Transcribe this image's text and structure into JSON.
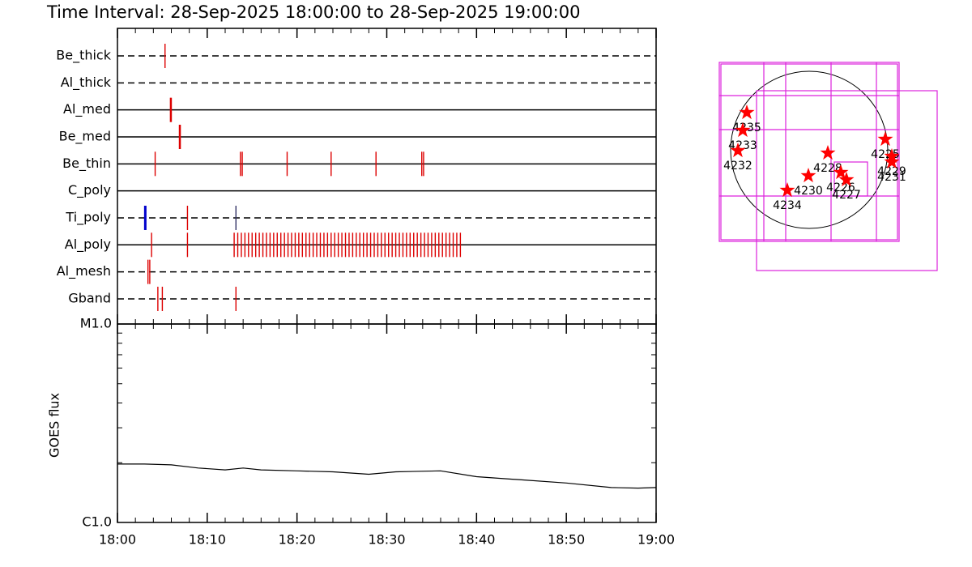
{
  "title": "Time Interval: 28-Sep-2025 18:00:00 to 28-Sep-2025 19:00:00",
  "chart_data": [
    {
      "type": "timeline",
      "color": "#dd0000",
      "rows": [
        {
          "name": "Be_thick",
          "style": "dashed",
          "times": [
            5.3
          ]
        },
        {
          "name": "Al_thick",
          "style": "dashed",
          "times": []
        },
        {
          "name": "Al_med",
          "style": "solid",
          "times": [
            5.9,
            6.0
          ]
        },
        {
          "name": "Be_med",
          "style": "solid",
          "times": [
            6.9,
            7.0
          ]
        },
        {
          "name": "Be_thin",
          "style": "solid",
          "times": [
            4.2,
            13.7,
            13.9,
            18.9,
            23.8,
            28.8,
            33.9,
            34.1
          ]
        },
        {
          "name": "C_poly",
          "style": "solid",
          "times": []
        },
        {
          "name": "Ti_poly",
          "style": "dashed",
          "times": [
            3.1,
            7.8,
            13.2
          ],
          "colors": [
            "#0000cc",
            "#dd0000",
            "#333366"
          ]
        },
        {
          "name": "Al_poly",
          "style": "solid",
          "times": [
            3.8,
            7.8,
            13.0,
            13.4,
            13.8,
            14.2,
            14.6,
            15.0,
            15.4,
            15.8,
            16.2,
            16.6,
            17.0,
            17.4,
            17.8,
            18.2,
            18.6,
            19.0,
            19.4,
            19.8,
            20.2,
            20.6,
            21.0,
            21.4,
            21.8,
            22.2,
            22.6,
            23.0,
            23.4,
            23.8,
            24.2,
            24.6,
            25.0,
            25.4,
            25.8,
            26.2,
            26.6,
            27.0,
            27.4,
            27.8,
            28.2,
            28.6,
            29.0,
            29.4,
            29.8,
            30.2,
            30.6,
            31.0,
            31.4,
            31.8,
            32.2,
            32.6,
            33.0,
            33.4,
            33.8,
            34.2,
            34.6,
            35.0,
            35.4,
            35.8,
            36.2,
            36.6,
            37.0,
            37.4,
            37.8,
            38.2
          ]
        },
        {
          "name": "Al_mesh",
          "style": "dashed",
          "times": [
            3.4,
            3.6
          ]
        },
        {
          "name": "Gband",
          "style": "dashed",
          "times": [
            4.5,
            5.0,
            13.2
          ]
        }
      ]
    },
    {
      "type": "line",
      "ylabel": "GOES flux",
      "log_y": true,
      "color": "#000000",
      "x": [
        0,
        3,
        6,
        9,
        12,
        14,
        16,
        20,
        24,
        28,
        31,
        36,
        40,
        45,
        50,
        55,
        58,
        60
      ],
      "values": [
        1.97e-06,
        1.97e-06,
        1.95e-06,
        1.88e-06,
        1.84e-06,
        1.88e-06,
        1.84e-06,
        1.82e-06,
        1.8e-06,
        1.75e-06,
        1.8e-06,
        1.82e-06,
        1.7e-06,
        1.64e-06,
        1.58e-06,
        1.5e-06,
        1.49e-06,
        1.5e-06
      ],
      "xlim": [
        0,
        60
      ],
      "xticks": [
        {
          "value": 0,
          "label": "18:00"
        },
        {
          "value": 10,
          "label": "18:10"
        },
        {
          "value": 20,
          "label": "18:20"
        },
        {
          "value": 30,
          "label": "18:30"
        },
        {
          "value": 40,
          "label": "18:40"
        },
        {
          "value": 50,
          "label": "18:50"
        },
        {
          "value": 60,
          "label": "19:00"
        }
      ],
      "ylim": [
        1e-06,
        1e-05
      ],
      "yticks": [
        {
          "value": 1e-06,
          "label": "C1.0"
        },
        {
          "value": 1e-05,
          "label": "M1.0"
        }
      ]
    },
    {
      "type": "scatter",
      "color": "#ff0000",
      "xlim": [
        -1200,
        1200
      ],
      "ylim": [
        -1200,
        1200
      ],
      "labels": [
        "4235",
        "4233",
        "4232",
        "4234",
        "4230",
        "4228",
        "4226",
        "4227",
        "4225",
        "4229",
        "4231"
      ],
      "x": [
        -770,
        -820,
        -880,
        -270,
        -10,
        230,
        390,
        460,
        940,
        1020,
        1020
      ],
      "values": [
        460,
        240,
        -10,
        -500,
        -320,
        -40,
        -280,
        -370,
        130,
        -80,
        -150
      ]
    }
  ]
}
